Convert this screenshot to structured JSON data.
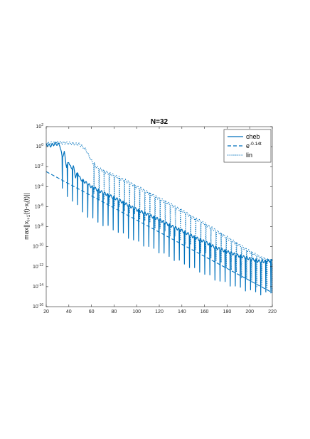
{
  "chart_data": {
    "type": "line",
    "title": "N=32",
    "xlabel": "",
    "ylabel": "max||x_{l+1}(t)-x_l(t)||",
    "y_scale": "log",
    "xlim": [
      20,
      220
    ],
    "ylim_exp": [
      -16,
      2
    ],
    "x_ticks": [
      "20",
      "40",
      "60",
      "80",
      "100",
      "120",
      "140",
      "160",
      "180",
      "200",
      "220"
    ],
    "y_tick_exponents": [
      "2",
      "0",
      "-2",
      "-4",
      "-6",
      "-8",
      "-10",
      "-12",
      "-14",
      "-16"
    ],
    "y_tick_base": "10",
    "grid": false,
    "legend_position": "top-right",
    "color": "#0072BD",
    "series": [
      {
        "name": "cheb",
        "style": "solid",
        "x": [
          20,
          24,
          28,
          32,
          34,
          36,
          38,
          40,
          42,
          44,
          46,
          48,
          50,
          55,
          60,
          65,
          70,
          80,
          90,
          100,
          110,
          120,
          130,
          140,
          150,
          160,
          170,
          180,
          190,
          200,
          210,
          220
        ],
        "log10_y": [
          0.2,
          0.1,
          0.3,
          0.2,
          -1.0,
          -0.6,
          -2.0,
          -1.5,
          -2.2,
          -2.0,
          -3.0,
          -2.6,
          -3.2,
          -3.6,
          -4.0,
          -4.3,
          -4.6,
          -5.1,
          -5.7,
          -6.3,
          -6.8,
          -7.3,
          -7.9,
          -8.4,
          -9.0,
          -9.5,
          -10.1,
          -10.5,
          -10.9,
          -11.2,
          -11.5,
          -11.4
        ],
        "spikes_every": 4.5,
        "spike_depth": 3.2
      },
      {
        "name": "e^{-0.14t}",
        "style": "dashed",
        "x": [
          20,
          220
        ],
        "log10_y": [
          -2.5,
          -14.6
        ]
      },
      {
        "name": "lin",
        "style": "dotted",
        "x": [
          20,
          30,
          40,
          50,
          55,
          60,
          65,
          70,
          80,
          90,
          100,
          110,
          120,
          130,
          140,
          150,
          160,
          170,
          180,
          190,
          200,
          210,
          220
        ],
        "log10_y": [
          0.3,
          0.4,
          0.35,
          0.2,
          -0.3,
          -1.4,
          -2.1,
          -2.4,
          -2.9,
          -3.4,
          -4.0,
          -4.6,
          -5.2,
          -5.8,
          -6.4,
          -7.1,
          -7.7,
          -8.4,
          -9.1,
          -9.8,
          -10.5,
          -11.1,
          -11.5
        ],
        "spikes_every": 4.5,
        "spike_depth": 3.0
      }
    ],
    "legend": [
      {
        "label": "cheb",
        "style": "solid"
      },
      {
        "label": "e",
        "sup": "-0.14t",
        "style": "dashed"
      },
      {
        "label": "lin",
        "style": "dotted"
      }
    ]
  }
}
